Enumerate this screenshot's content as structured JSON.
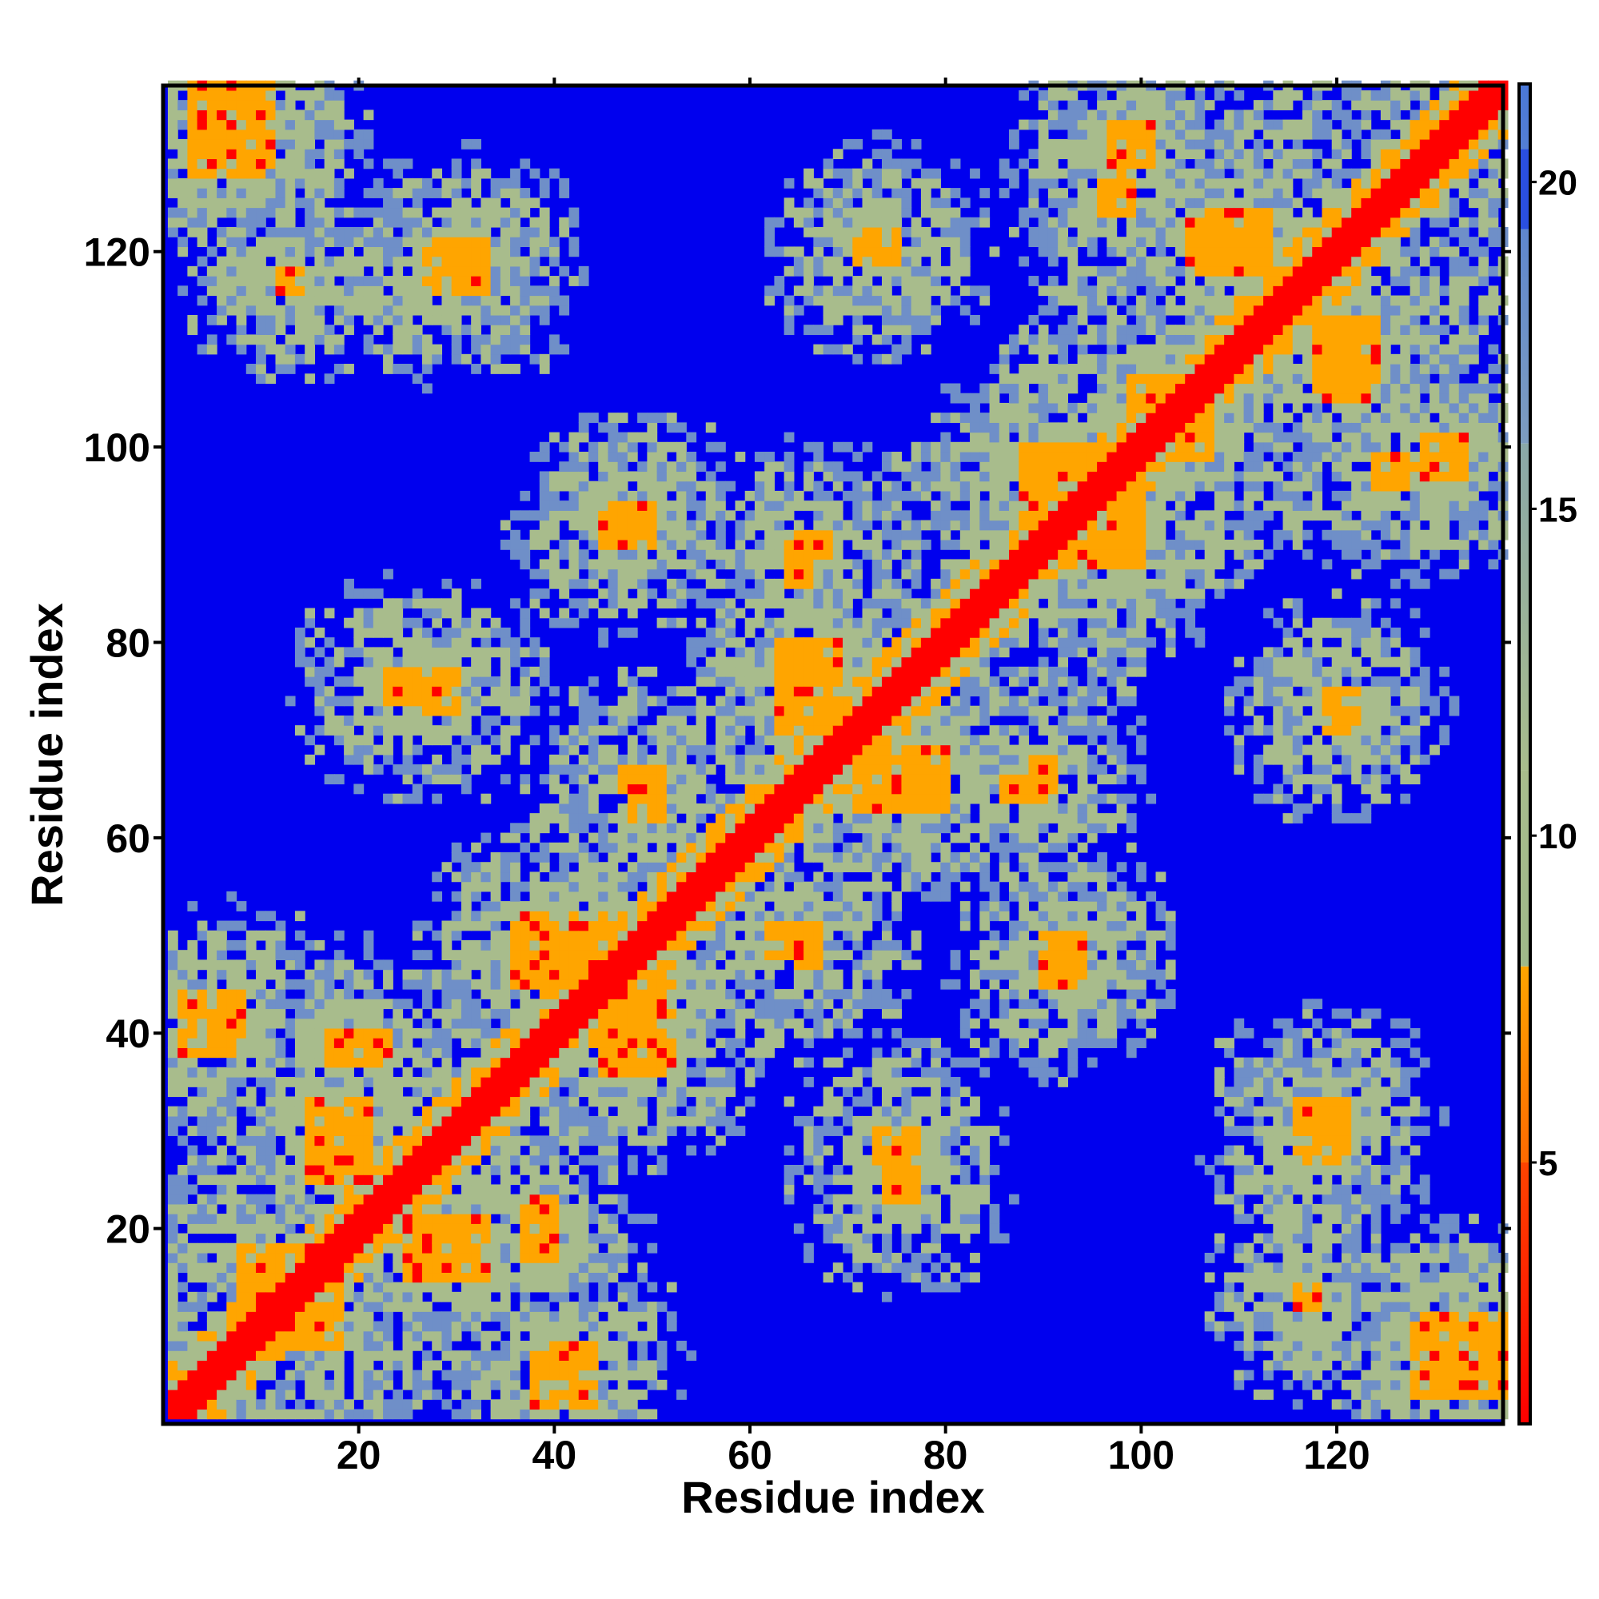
{
  "chart_data": {
    "type": "heatmap",
    "title": "",
    "xlabel": "Residue index",
    "ylabel": "Residue index",
    "n_residues": 137,
    "xlim": [
      1,
      137
    ],
    "ylim": [
      1,
      137
    ],
    "x_ticks": [
      20,
      40,
      60,
      80,
      100,
      120
    ],
    "y_ticks": [
      20,
      40,
      60,
      80,
      100,
      120
    ],
    "colorbar": {
      "ticks": [
        5,
        10,
        15,
        20
      ],
      "range": [
        1,
        21.5
      ],
      "colors": {
        "contact": "#ff0000",
        "near": "#ffa500",
        "mid": "#a8bc8c",
        "far": "#6f8fc8",
        "background": "#0000ee"
      }
    },
    "grid": false,
    "features": {
      "diagonal_band_width": 2,
      "contacts": [
        {
          "x": [
            3,
            11
          ],
          "y": [
            129,
            137
          ]
        },
        {
          "x": [
            28,
            33
          ],
          "y": [
            116,
            121
          ]
        },
        {
          "x": [
            72,
            75
          ],
          "y": [
            119,
            122
          ]
        },
        {
          "x": [
            97,
            101
          ],
          "y": [
            129,
            133
          ]
        },
        {
          "x": [
            109,
            113
          ],
          "y": [
            118,
            124
          ]
        },
        {
          "x": [
            118,
            124
          ],
          "y": [
            105,
            110
          ]
        },
        {
          "x": [
            99,
            105
          ],
          "y": [
            99,
            107
          ]
        },
        {
          "x": [
            92,
            100
          ],
          "y": [
            88,
            93
          ]
        },
        {
          "x": [
            94,
            99
          ],
          "y": [
            96,
            100
          ]
        },
        {
          "x": [
            124,
            130
          ],
          "y": [
            96,
            99
          ]
        },
        {
          "x": [
            46,
            50
          ],
          "y": [
            90,
            94
          ]
        },
        {
          "x": [
            63,
            68
          ],
          "y": [
            72,
            80
          ]
        },
        {
          "x": [
            71,
            80
          ],
          "y": [
            63,
            69
          ]
        },
        {
          "x": [
            64,
            66
          ],
          "y": [
            86,
            88
          ]
        },
        {
          "x": [
            27,
            30
          ],
          "y": [
            73,
            77
          ]
        },
        {
          "x": [
            119,
            121
          ],
          "y": [
            71,
            74
          ]
        },
        {
          "x": [
            89,
            91
          ],
          "y": [
            64,
            68
          ]
        },
        {
          "x": [
            48,
            51
          ],
          "y": [
            62,
            66
          ]
        },
        {
          "x": [
            36,
            44
          ],
          "y": [
            45,
            51
          ]
        },
        {
          "x": [
            45,
            52
          ],
          "y": [
            37,
            45
          ]
        },
        {
          "x": [
            65,
            67
          ],
          "y": [
            47,
            51
          ]
        },
        {
          "x": [
            90,
            93
          ],
          "y": [
            45,
            48
          ]
        },
        {
          "x": [
            2,
            8
          ],
          "y": [
            40,
            44
          ]
        },
        {
          "x": [
            17,
            22
          ],
          "y": [
            37,
            39
          ]
        },
        {
          "x": [
            15,
            21
          ],
          "y": [
            25,
            32
          ]
        },
        {
          "x": [
            26,
            33
          ],
          "y": [
            15,
            21
          ]
        },
        {
          "x": [
            38,
            40
          ],
          "y": [
            17,
            23
          ]
        },
        {
          "x": [
            8,
            17
          ],
          "y": [
            8,
            18
          ]
        },
        {
          "x": [
            38,
            44
          ],
          "y": [
            2,
            7
          ]
        },
        {
          "x": [
            74,
            77
          ],
          "y": [
            23,
            27
          ]
        },
        {
          "x": [
            116,
            120
          ],
          "y": [
            27,
            31
          ]
        },
        {
          "x": [
            128,
            137
          ],
          "y": [
            3,
            10
          ]
        },
        {
          "x": [
            116,
            118
          ],
          "y": [
            12,
            14
          ]
        }
      ],
      "domains": [
        {
          "x": [
            1,
            40
          ],
          "y": [
            1,
            45
          ]
        },
        {
          "x": [
            38,
            75
          ],
          "y": [
            38,
            75
          ]
        },
        {
          "x": [
            60,
            100
          ],
          "y": [
            60,
            100
          ]
        },
        {
          "x": [
            85,
            137
          ],
          "y": [
            85,
            137
          ]
        }
      ]
    }
  }
}
